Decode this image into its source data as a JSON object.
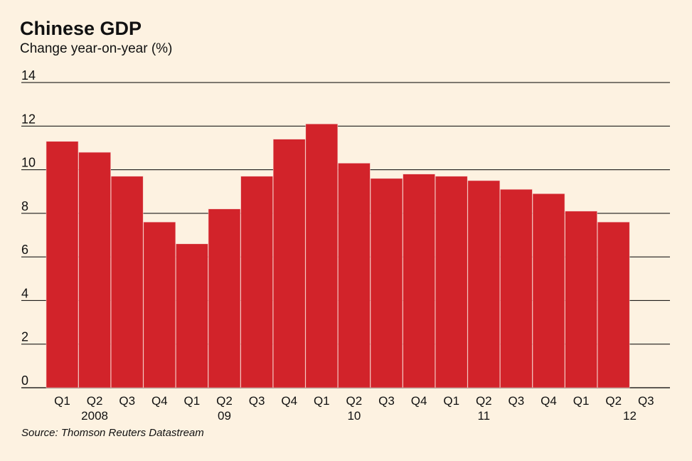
{
  "header": {
    "title": "Chinese GDP",
    "subtitle": "Change year-on-year (%)"
  },
  "footer": {
    "source": "Source: Thomson Reuters Datastream"
  },
  "colors": {
    "bar": "#d2232a",
    "background": "#fdf2e1",
    "grid": "#000000"
  },
  "chart_data": {
    "type": "bar",
    "title": "Chinese GDP",
    "subtitle": "Change year-on-year (%)",
    "categories": [
      "Q1",
      "Q2",
      "Q3",
      "Q4",
      "Q1",
      "Q2",
      "Q3",
      "Q4",
      "Q1",
      "Q2",
      "Q3",
      "Q4",
      "Q1",
      "Q2",
      "Q3",
      "Q4",
      "Q1",
      "Q2",
      "Q3"
    ],
    "years": [
      {
        "label": "2008",
        "center_index": 1
      },
      {
        "label": "09",
        "center_index": 5
      },
      {
        "label": "10",
        "center_index": 9
      },
      {
        "label": "11",
        "center_index": 13
      },
      {
        "label": "12",
        "center_index": 17.5
      }
    ],
    "values": [
      11.3,
      10.8,
      9.7,
      7.6,
      6.6,
      8.2,
      9.7,
      11.4,
      12.1,
      10.3,
      9.6,
      9.8,
      9.7,
      9.5,
      9.1,
      8.9,
      8.1,
      7.6,
      null
    ],
    "ylim": [
      0,
      14
    ],
    "yticks": [
      0,
      2,
      4,
      6,
      8,
      10,
      12,
      14
    ],
    "grid": true,
    "xlabel": "",
    "ylabel": ""
  }
}
